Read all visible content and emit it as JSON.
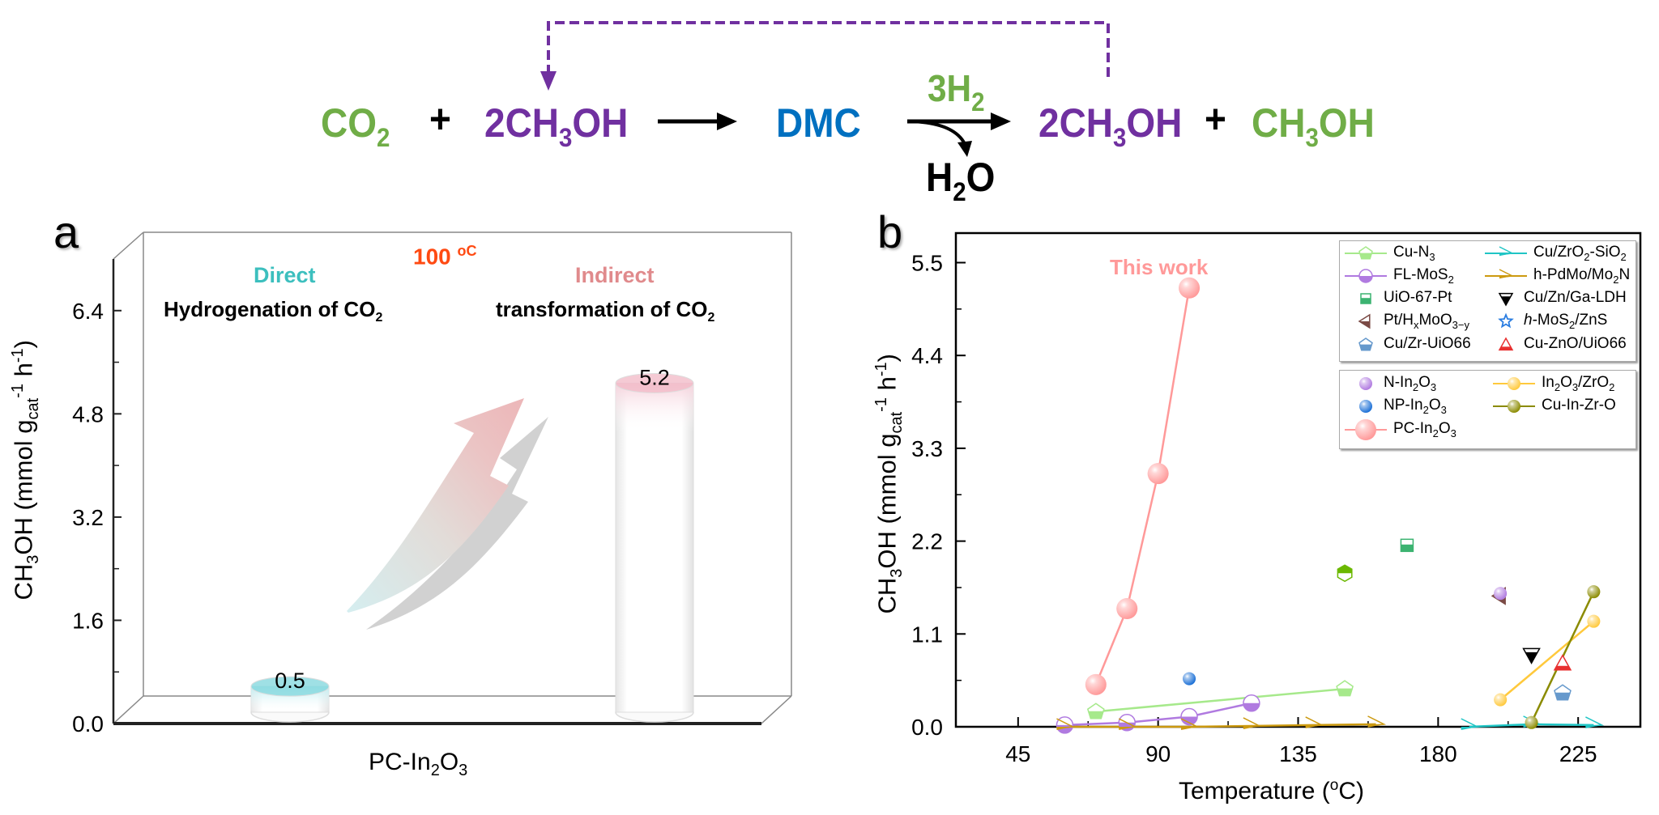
{
  "scheme": {
    "reactant_1": "CO",
    "reactant_1_sub": "2",
    "plus_1": "+",
    "reactant_2_pre": "2CH",
    "reactant_2_sub": "3",
    "reactant_2_post": "OH",
    "intermediate": "DMC",
    "reagent_pre": "3H",
    "reagent_sub": "2",
    "byproduct_pre": "H",
    "byproduct_sub": "2",
    "byproduct_post": "O",
    "product_1_pre": "2CH",
    "product_1_sub": "3",
    "product_1_post": "OH",
    "plus_2": "+",
    "product_2_pre": "CH",
    "product_2_sub": "3",
    "product_2_post": "OH",
    "colors": {
      "green": "#70ad47",
      "purple": "#7030a0",
      "blue": "#0070c0"
    }
  },
  "chart_data": [
    {
      "panel": "a",
      "type": "bar",
      "style": "3d-cylinder",
      "panel_label": "a",
      "categories": [
        "Direct Hydrogenation of CO2",
        "Indirect transformation of CO2"
      ],
      "values": [
        0.5,
        5.2
      ],
      "data_labels": [
        "0.5",
        "5.2"
      ],
      "bar_colors": [
        "#7fd6dc",
        "#f2b8c6"
      ],
      "condition": "100 °C",
      "condition_value": "100",
      "condition_unit": "oC",
      "annotations": {
        "direct_title": "Direct",
        "direct_sub_pre": "Hydrogenation of CO",
        "direct_sub_sub": "2",
        "indirect_title": "Indirect",
        "indirect_sub_pre": "transformation of CO",
        "indirect_sub_sub": "2"
      },
      "xlabel_pre": "PC-In",
      "xlabel_sub1": "2",
      "xlabel_mid": "O",
      "xlabel_sub2": "3",
      "ylabel_pre": "CH",
      "ylabel_sub1": "3",
      "ylabel_mid": "OH (mmol g",
      "ylabel_sub2": "cat",
      "ylabel_sup1": "-1",
      "ylabel_mid2": " h",
      "ylabel_sup2": "-1",
      "ylabel_post": ")",
      "yticks": [
        "0.0",
        "1.6",
        "3.2",
        "4.8",
        "6.4"
      ],
      "ylim": [
        0,
        7.2
      ],
      "grid": false
    },
    {
      "panel": "b",
      "type": "scatter",
      "panel_label": "b",
      "annotation": "This work",
      "xlabel": "Temperature (°C)",
      "xlabel_pre": "Temperature (",
      "xlabel_sup": "o",
      "xlabel_post": "C)",
      "ylabel_pre": "CH",
      "ylabel_sub1": "3",
      "ylabel_mid": "OH (mmol g",
      "ylabel_sub2": "cat",
      "ylabel_sup1": "-1",
      "ylabel_mid2": " h",
      "ylabel_sup2": "-1",
      "ylabel_post": ")",
      "xticks": [
        "45",
        "90",
        "135",
        "180",
        "225"
      ],
      "yticks": [
        "0.0",
        "1.1",
        "2.2",
        "3.3",
        "4.4",
        "5.5"
      ],
      "xlim": [
        25,
        245
      ],
      "ylim": [
        0,
        5.85
      ],
      "grid": false,
      "legend_placement": "top-right",
      "series": [
        {
          "name": "Cu-N3",
          "label_pre": "Cu-N",
          "label_sub": "3",
          "label_post": "",
          "marker": "pentagon-half",
          "color": "#a6e98b",
          "line": true,
          "x": [
            70,
            150
          ],
          "y": [
            0.18,
            0.45
          ]
        },
        {
          "name": "FL-MoS2",
          "label_pre": "FL-MoS",
          "label_sub": "2",
          "label_post": "",
          "marker": "circle-half",
          "color": "#b07ae0",
          "line": true,
          "x": [
            60,
            80,
            100,
            120
          ],
          "y": [
            0.02,
            0.05,
            0.12,
            0.28
          ]
        },
        {
          "name": "UiO-67-Pt",
          "label_pre": "UiO-67-Pt",
          "label_sub": "",
          "label_post": "",
          "marker": "square-half",
          "color": "#3cb371",
          "line": false,
          "x": [
            170
          ],
          "y": [
            2.15
          ]
        },
        {
          "name": "Pt/HxMoO3-y",
          "label_pre": "Pt/H",
          "label_sub": "x",
          "label_post": "MoO",
          "label_sub2": "3−y",
          "marker": "triangle-left-half",
          "color": "#7b4a45",
          "line": false,
          "x": [
            200
          ],
          "y": [
            1.55
          ]
        },
        {
          "name": "Cu/Zr-UiO66",
          "label_pre": "Cu/Zr-UiO66",
          "label_sub": "",
          "label_post": "",
          "marker": "pentagon-half",
          "color": "#6699cc",
          "line": false,
          "x": [
            220
          ],
          "y": [
            0.4
          ]
        },
        {
          "name": "Cu/ZrO2-SiO2",
          "label_pre": "Cu/ZrO",
          "label_sub": "2",
          "label_post": "-SiO",
          "label_sub2": "2",
          "marker": "triangle-right-half",
          "color": "#20c5c5",
          "line": true,
          "x": [
            190,
            210,
            230
          ],
          "y": [
            0.0,
            0.03,
            0.02
          ]
        },
        {
          "name": "h-PdMo/Mo2N",
          "label_pre": "h-PdMo/Mo",
          "label_sub": "2",
          "label_post": "N",
          "marker": "triangle-right-half",
          "color": "#cc9a10",
          "line": true,
          "x": [
            60,
            80,
            100,
            120,
            140,
            160
          ],
          "y": [
            0.0,
            0.0,
            0.0,
            0.01,
            0.02,
            0.03
          ]
        },
        {
          "name": "Cu/Zn/Ga-LDH",
          "label_pre": "Cu/Zn/Ga-LDH",
          "label_sub": "",
          "label_post": "",
          "marker": "triangle-down-half",
          "color": "#000000",
          "line": false,
          "x": [
            210
          ],
          "y": [
            0.85
          ]
        },
        {
          "name": "h-MoS2/ZnS",
          "label_pre": "h-MoS",
          "label_sub": "2",
          "label_post": "/ZnS",
          "marker": "star",
          "color": "#2a7de1",
          "line": false,
          "x": [],
          "y": []
        },
        {
          "name": "Cu-ZnO/UiO66",
          "label_pre": "Cu-ZnO/UiO66",
          "label_sub": "",
          "label_post": "",
          "marker": "triangle-up-half",
          "color": "#e83030",
          "line": false,
          "x": [
            220
          ],
          "y": [
            0.75
          ]
        },
        {
          "name": "N-In2O3",
          "label_pre": "N-In",
          "label_sub": "2",
          "label_post": "O",
          "label_sub2": "3",
          "marker": "sphere",
          "color": "#b07ae0",
          "line": false,
          "x": [
            200
          ],
          "y": [
            1.58
          ]
        },
        {
          "name": "NP-In2O3",
          "label_pre": "NP-In",
          "label_sub": "2",
          "label_post": "O",
          "label_sub2": "3",
          "marker": "sphere",
          "color": "#1a6fd6",
          "line": false,
          "x": [
            100
          ],
          "y": [
            0.57
          ]
        },
        {
          "name": "PC-In2O3",
          "label_pre": "PC-In",
          "label_sub": "2",
          "label_post": "O",
          "label_sub2": "3",
          "marker": "sphere-large",
          "color": "#ff9999",
          "line": true,
          "x": [
            70,
            80,
            90,
            100
          ],
          "y": [
            0.5,
            1.4,
            3.0,
            5.2
          ]
        },
        {
          "name": "In2O3/ZrO2",
          "label_pre": "In",
          "label_sub": "2",
          "label_post": "O",
          "label_sub2": "3",
          "label_post2": "/ZrO",
          "label_sub3": "2",
          "marker": "sphere",
          "color": "#ffc93c",
          "line": true,
          "x": [
            200,
            230
          ],
          "y": [
            0.32,
            1.25
          ]
        },
        {
          "name": "Cu-In-Zr-O",
          "label_pre": "Cu-In-Zr-O",
          "label_sub": "",
          "label_post": "",
          "marker": "sphere",
          "color": "#8b8b00",
          "line": true,
          "x": [
            210,
            230
          ],
          "y": [
            0.05,
            1.6
          ]
        },
        {
          "name": "unlabeled-green-hexagon",
          "label_pre": "",
          "marker": "hexagon-half",
          "color": "#6bb800",
          "line": false,
          "x": [
            150
          ],
          "y": [
            1.82
          ]
        }
      ]
    }
  ]
}
